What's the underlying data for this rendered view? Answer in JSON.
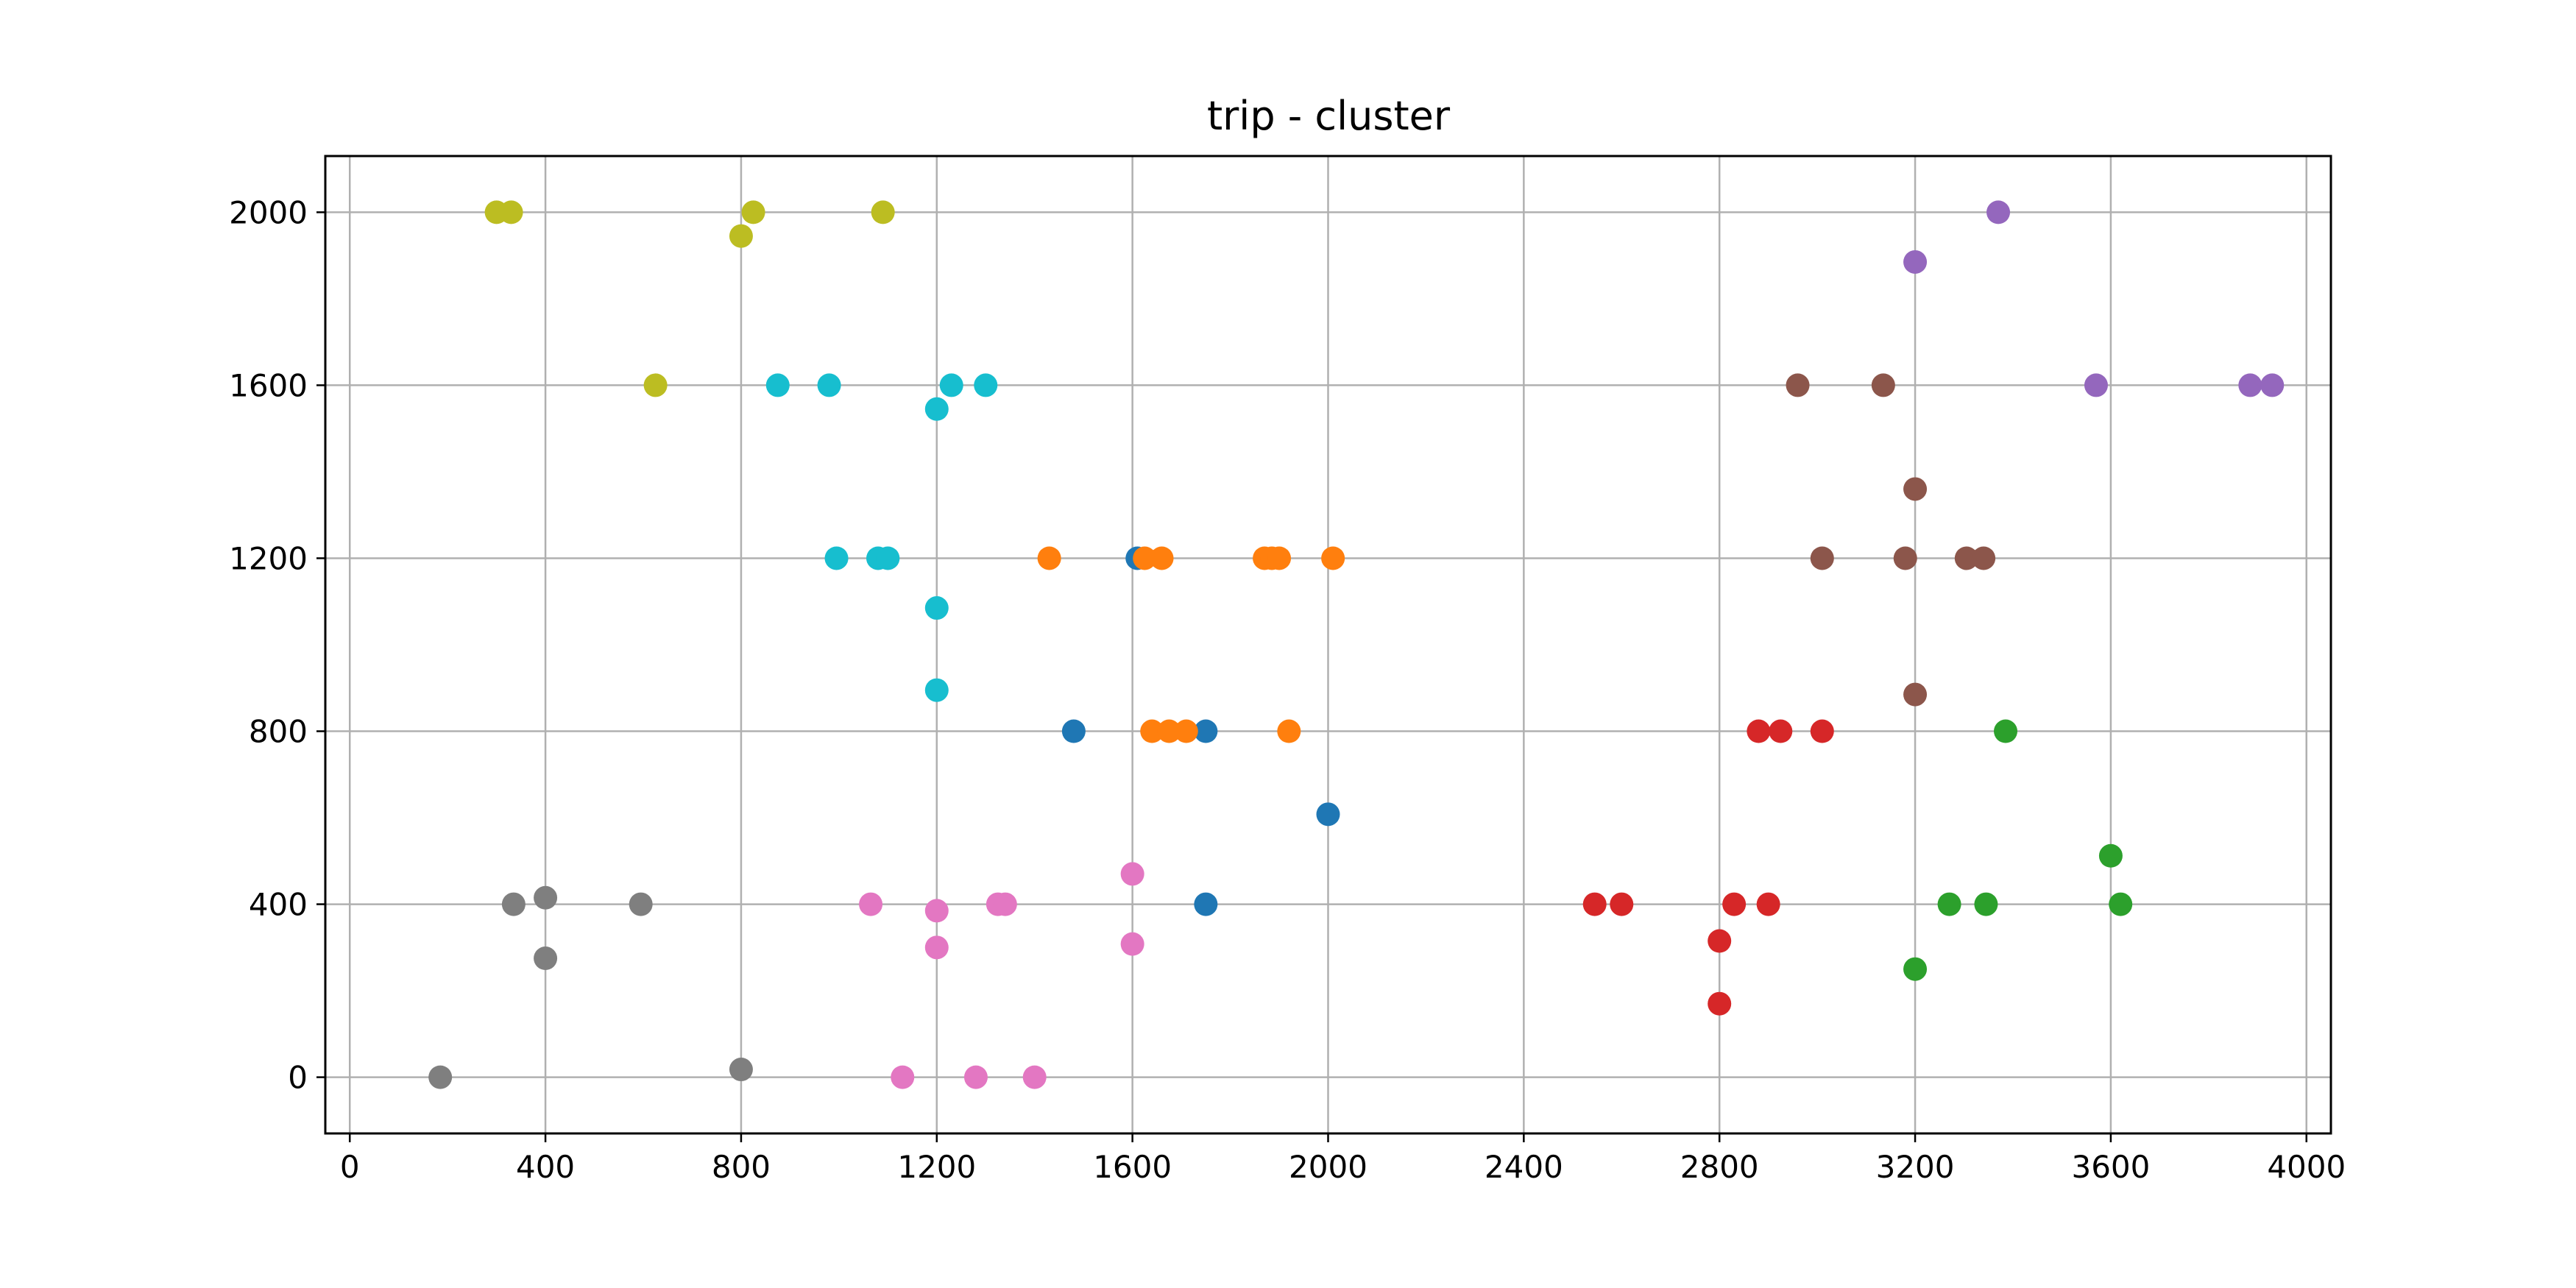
{
  "chart_data": {
    "type": "scatter",
    "title": "trip - cluster",
    "xlabel": "",
    "ylabel": "",
    "xlim": [
      -50,
      4050
    ],
    "ylim": [
      -130,
      2130
    ],
    "xticks": [
      0,
      400,
      800,
      1200,
      1600,
      2000,
      2400,
      2800,
      3200,
      3600,
      4000
    ],
    "yticks": [
      0,
      400,
      800,
      1200,
      1600,
      2000
    ],
    "grid": true,
    "legend": "none",
    "series": [
      {
        "color": "#1f77b4",
        "points": [
          [
            1480,
            800
          ],
          [
            1610,
            1200
          ],
          [
            1750,
            800
          ],
          [
            1750,
            400
          ],
          [
            2000,
            608
          ]
        ]
      },
      {
        "color": "#ff7f0e",
        "points": [
          [
            1430,
            1200
          ],
          [
            1625,
            1200
          ],
          [
            1660,
            1200
          ],
          [
            1640,
            800
          ],
          [
            1675,
            800
          ],
          [
            1710,
            800
          ],
          [
            1870,
            1200
          ],
          [
            1885,
            1200
          ],
          [
            1900,
            1200
          ],
          [
            1920,
            800
          ],
          [
            2010,
            1200
          ]
        ]
      },
      {
        "color": "#2ca02c",
        "points": [
          [
            3200,
            250
          ],
          [
            3270,
            400
          ],
          [
            3345,
            400
          ],
          [
            3385,
            800
          ],
          [
            3600,
            512
          ],
          [
            3620,
            400
          ]
        ]
      },
      {
        "color": "#d62728",
        "points": [
          [
            2545,
            400
          ],
          [
            2600,
            400
          ],
          [
            2800,
            170
          ],
          [
            2800,
            315
          ],
          [
            2830,
            400
          ],
          [
            2880,
            800
          ],
          [
            2900,
            400
          ],
          [
            2925,
            800
          ],
          [
            3010,
            800
          ]
        ]
      },
      {
        "color": "#9467bd",
        "points": [
          [
            3200,
            1885
          ],
          [
            3370,
            2000
          ],
          [
            3570,
            1600
          ],
          [
            3885,
            1600
          ],
          [
            3930,
            1600
          ]
        ]
      },
      {
        "color": "#8c564b",
        "points": [
          [
            2960,
            1600
          ],
          [
            3010,
            1200
          ],
          [
            3135,
            1600
          ],
          [
            3180,
            1200
          ],
          [
            3200,
            1360
          ],
          [
            3200,
            885
          ],
          [
            3305,
            1200
          ],
          [
            3340,
            1200
          ]
        ]
      },
      {
        "color": "#e377c2",
        "points": [
          [
            1065,
            400
          ],
          [
            1130,
            0
          ],
          [
            1200,
            385
          ],
          [
            1200,
            300
          ],
          [
            1280,
            0
          ],
          [
            1325,
            400
          ],
          [
            1340,
            400
          ],
          [
            1400,
            0
          ],
          [
            1600,
            470
          ],
          [
            1600,
            308
          ]
        ]
      },
      {
        "color": "#7f7f7f",
        "points": [
          [
            185,
            0
          ],
          [
            335,
            400
          ],
          [
            400,
            415
          ],
          [
            400,
            275
          ],
          [
            595,
            400
          ],
          [
            800,
            18
          ]
        ]
      },
      {
        "color": "#bcbd22",
        "points": [
          [
            300,
            2000
          ],
          [
            330,
            2000
          ],
          [
            625,
            1600
          ],
          [
            800,
            1945
          ],
          [
            825,
            2000
          ],
          [
            1090,
            2000
          ]
        ]
      },
      {
        "color": "#17becf",
        "points": [
          [
            875,
            1600
          ],
          [
            980,
            1600
          ],
          [
            995,
            1200
          ],
          [
            1080,
            1200
          ],
          [
            1100,
            1200
          ],
          [
            1200,
            1545
          ],
          [
            1200,
            1085
          ],
          [
            1200,
            895
          ],
          [
            1230,
            1600
          ],
          [
            1300,
            1600
          ]
        ]
      }
    ]
  }
}
